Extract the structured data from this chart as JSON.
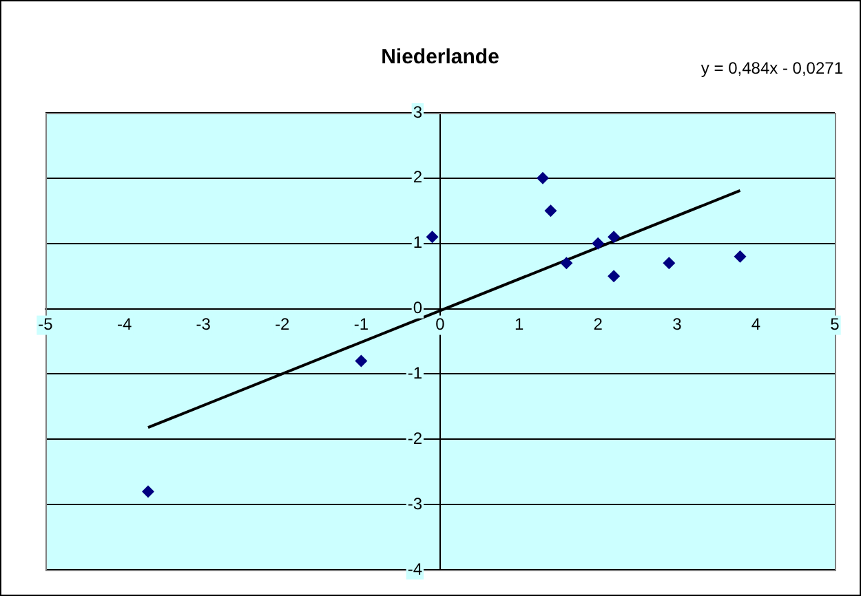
{
  "chart_data": {
    "type": "scatter",
    "title": "Niederlande",
    "annotations": [
      "y = 0,484x - 0,0271"
    ],
    "series": [
      {
        "color": "#000080",
        "x": [
          -3.7,
          -1.0,
          -0.1,
          1.3,
          1.4,
          1.6,
          2.0,
          2.2,
          2.2,
          2.9,
          3.8
        ],
        "values": [
          -2.8,
          -0.8,
          1.1,
          2.0,
          1.5,
          0.7,
          1.0,
          1.1,
          0.5,
          0.7,
          0.8
        ],
        "marker": "diamond"
      },
      {
        "type": "line",
        "color": "#000000",
        "x": [
          -3.7,
          3.8
        ],
        "values": [
          -1.82,
          1.81
        ],
        "marker": "none",
        "line_style": "solid"
      }
    ],
    "xlim": [
      -5,
      5
    ],
    "xticks": [
      -5,
      -4,
      -3,
      -2,
      -1,
      0,
      1,
      2,
      3,
      4,
      5
    ],
    "ylim": [
      -4,
      3
    ],
    "yticks": [
      -4,
      -3,
      -2,
      -1,
      0,
      1,
      2,
      3
    ],
    "grid": "y",
    "legend": false
  }
}
